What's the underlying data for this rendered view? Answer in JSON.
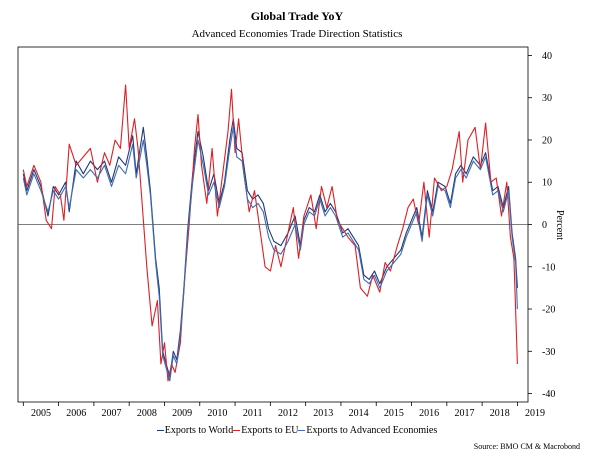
{
  "title": "Global Trade YoY",
  "subtitle": "Advanced Economies Trade Direction Statistics",
  "source": "Source: BMO CM & Macrobond",
  "colors": {
    "world": "#1f3a78",
    "eu": "#dd1f26",
    "advanced": "#3f6cb3"
  },
  "chart_data": {
    "type": "line",
    "title": "Global Trade YoY",
    "subtitle": "Advanced Economies Trade Direction Statistics",
    "ylabel": "Percent",
    "xlabel": "",
    "ylim": [
      -42,
      42
    ],
    "yticks": [
      -40,
      -30,
      -20,
      -10,
      0,
      10,
      20,
      30,
      40
    ],
    "xlim": [
      2004.85,
      2019.3
    ],
    "xticks": [
      "2005",
      "2006",
      "2007",
      "2008",
      "2009",
      "2010",
      "2011",
      "2012",
      "2013",
      "2014",
      "2015",
      "2016",
      "2017",
      "2018",
      "2019"
    ],
    "zero_line": true,
    "legend_position": "bottom",
    "series": [
      {
        "name": "Exports to World",
        "color": "#1f3a78",
        "points": [
          [
            2005.0,
            12
          ],
          [
            2005.1,
            8
          ],
          [
            2005.3,
            13
          ],
          [
            2005.5,
            9
          ],
          [
            2005.7,
            2
          ],
          [
            2005.85,
            9
          ],
          [
            2006.0,
            7
          ],
          [
            2006.2,
            10
          ],
          [
            2006.3,
            3
          ],
          [
            2006.5,
            15
          ],
          [
            2006.7,
            12
          ],
          [
            2006.9,
            15
          ],
          [
            2007.1,
            13
          ],
          [
            2007.3,
            15
          ],
          [
            2007.5,
            10
          ],
          [
            2007.7,
            16
          ],
          [
            2007.9,
            14
          ],
          [
            2008.1,
            21
          ],
          [
            2008.2,
            12
          ],
          [
            2008.4,
            23
          ],
          [
            2008.5,
            16
          ],
          [
            2008.6,
            8
          ],
          [
            2008.75,
            -8
          ],
          [
            2008.85,
            -15
          ],
          [
            2008.95,
            -30
          ],
          [
            2009.05,
            -33
          ],
          [
            2009.15,
            -36
          ],
          [
            2009.25,
            -30
          ],
          [
            2009.35,
            -32
          ],
          [
            2009.45,
            -25
          ],
          [
            2009.55,
            -15
          ],
          [
            2009.65,
            -2
          ],
          [
            2009.8,
            12
          ],
          [
            2009.95,
            22
          ],
          [
            2010.1,
            16
          ],
          [
            2010.25,
            8
          ],
          [
            2010.4,
            12
          ],
          [
            2010.55,
            5
          ],
          [
            2010.7,
            10
          ],
          [
            2010.85,
            20
          ],
          [
            2010.95,
            25
          ],
          [
            2011.05,
            18
          ],
          [
            2011.2,
            17
          ],
          [
            2011.35,
            8
          ],
          [
            2011.5,
            6
          ],
          [
            2011.65,
            7
          ],
          [
            2011.8,
            5
          ],
          [
            2011.95,
            -1
          ],
          [
            2012.1,
            -4
          ],
          [
            2012.3,
            -5
          ],
          [
            2012.5,
            -2
          ],
          [
            2012.7,
            2
          ],
          [
            2012.85,
            -5
          ],
          [
            2012.95,
            1
          ],
          [
            2013.1,
            4
          ],
          [
            2013.25,
            3
          ],
          [
            2013.4,
            7
          ],
          [
            2013.55,
            3
          ],
          [
            2013.7,
            5
          ],
          [
            2013.85,
            3
          ],
          [
            2014.05,
            -2
          ],
          [
            2014.2,
            -1
          ],
          [
            2014.35,
            -3
          ],
          [
            2014.5,
            -5
          ],
          [
            2014.65,
            -12
          ],
          [
            2014.8,
            -13
          ],
          [
            2014.95,
            -11
          ],
          [
            2015.1,
            -14
          ],
          [
            2015.3,
            -10
          ],
          [
            2015.5,
            -8
          ],
          [
            2015.7,
            -6
          ],
          [
            2015.85,
            -2
          ],
          [
            2016.0,
            1
          ],
          [
            2016.15,
            4
          ],
          [
            2016.3,
            -3
          ],
          [
            2016.45,
            8
          ],
          [
            2016.6,
            3
          ],
          [
            2016.75,
            10
          ],
          [
            2016.95,
            9
          ],
          [
            2017.1,
            5
          ],
          [
            2017.25,
            12
          ],
          [
            2017.4,
            14
          ],
          [
            2017.55,
            12
          ],
          [
            2017.75,
            16
          ],
          [
            2017.95,
            14
          ],
          [
            2018.1,
            17
          ],
          [
            2018.3,
            8
          ],
          [
            2018.45,
            9
          ],
          [
            2018.6,
            4
          ],
          [
            2018.75,
            9
          ],
          [
            2018.85,
            -2
          ],
          [
            2018.95,
            -8
          ],
          [
            2019.0,
            -15
          ]
        ]
      },
      {
        "name": "Exports to EU",
        "color": "#dd1f26",
        "points": [
          [
            2005.0,
            13
          ],
          [
            2005.1,
            9
          ],
          [
            2005.3,
            14
          ],
          [
            2005.5,
            10
          ],
          [
            2005.65,
            1
          ],
          [
            2005.8,
            -1
          ],
          [
            2005.9,
            9
          ],
          [
            2006.05,
            7
          ],
          [
            2006.15,
            1
          ],
          [
            2006.3,
            19
          ],
          [
            2006.5,
            14
          ],
          [
            2006.7,
            16
          ],
          [
            2006.9,
            18
          ],
          [
            2007.1,
            10
          ],
          [
            2007.3,
            17
          ],
          [
            2007.45,
            14
          ],
          [
            2007.6,
            20
          ],
          [
            2007.75,
            18
          ],
          [
            2007.9,
            33
          ],
          [
            2008.0,
            18
          ],
          [
            2008.15,
            25
          ],
          [
            2008.25,
            18
          ],
          [
            2008.35,
            7
          ],
          [
            2008.5,
            -10
          ],
          [
            2008.65,
            -24
          ],
          [
            2008.8,
            -18
          ],
          [
            2008.9,
            -33
          ],
          [
            2009.0,
            -28
          ],
          [
            2009.1,
            -37
          ],
          [
            2009.2,
            -33
          ],
          [
            2009.3,
            -35
          ],
          [
            2009.45,
            -28
          ],
          [
            2009.55,
            -15
          ],
          [
            2009.7,
            0
          ],
          [
            2009.85,
            18
          ],
          [
            2009.95,
            26
          ],
          [
            2010.05,
            14
          ],
          [
            2010.2,
            5
          ],
          [
            2010.35,
            18
          ],
          [
            2010.5,
            2
          ],
          [
            2010.65,
            12
          ],
          [
            2010.8,
            22
          ],
          [
            2010.9,
            32
          ],
          [
            2011.0,
            17
          ],
          [
            2011.1,
            25
          ],
          [
            2011.25,
            12
          ],
          [
            2011.4,
            3
          ],
          [
            2011.55,
            8
          ],
          [
            2011.7,
            -1
          ],
          [
            2011.85,
            -10
          ],
          [
            2012.0,
            -11
          ],
          [
            2012.15,
            -5
          ],
          [
            2012.3,
            -10
          ],
          [
            2012.45,
            -4
          ],
          [
            2012.65,
            4
          ],
          [
            2012.8,
            -8
          ],
          [
            2012.95,
            2
          ],
          [
            2013.15,
            7
          ],
          [
            2013.3,
            -1
          ],
          [
            2013.45,
            9
          ],
          [
            2013.6,
            4
          ],
          [
            2013.75,
            9
          ],
          [
            2013.9,
            1
          ],
          [
            2014.05,
            -1
          ],
          [
            2014.2,
            -3
          ],
          [
            2014.4,
            -5
          ],
          [
            2014.55,
            -15
          ],
          [
            2014.75,
            -17
          ],
          [
            2014.9,
            -12
          ],
          [
            2015.1,
            -16
          ],
          [
            2015.25,
            -9
          ],
          [
            2015.4,
            -11
          ],
          [
            2015.6,
            -5
          ],
          [
            2015.75,
            -1
          ],
          [
            2015.9,
            4
          ],
          [
            2016.05,
            6
          ],
          [
            2016.2,
            0
          ],
          [
            2016.35,
            10
          ],
          [
            2016.5,
            -3
          ],
          [
            2016.65,
            11
          ],
          [
            2016.85,
            8
          ],
          [
            2017.0,
            9
          ],
          [
            2017.15,
            13
          ],
          [
            2017.35,
            22
          ],
          [
            2017.45,
            10
          ],
          [
            2017.6,
            20
          ],
          [
            2017.8,
            23
          ],
          [
            2017.95,
            13
          ],
          [
            2018.1,
            24
          ],
          [
            2018.25,
            10
          ],
          [
            2018.4,
            11
          ],
          [
            2018.55,
            2
          ],
          [
            2018.7,
            10
          ],
          [
            2018.8,
            -3
          ],
          [
            2018.9,
            -8
          ],
          [
            2019.0,
            -33
          ]
        ]
      },
      {
        "name": "Exports to Advanced Economies",
        "color": "#3f6cb3",
        "points": [
          [
            2005.0,
            11
          ],
          [
            2005.1,
            7
          ],
          [
            2005.3,
            12
          ],
          [
            2005.5,
            8
          ],
          [
            2005.7,
            3
          ],
          [
            2005.85,
            8
          ],
          [
            2006.0,
            6
          ],
          [
            2006.2,
            9
          ],
          [
            2006.3,
            4
          ],
          [
            2006.5,
            13
          ],
          [
            2006.7,
            11
          ],
          [
            2006.9,
            13
          ],
          [
            2007.1,
            11
          ],
          [
            2007.3,
            14
          ],
          [
            2007.5,
            9
          ],
          [
            2007.7,
            14
          ],
          [
            2007.9,
            12
          ],
          [
            2008.1,
            19
          ],
          [
            2008.2,
            11
          ],
          [
            2008.4,
            20
          ],
          [
            2008.5,
            14
          ],
          [
            2008.6,
            7
          ],
          [
            2008.75,
            -9
          ],
          [
            2008.85,
            -17
          ],
          [
            2008.95,
            -31
          ],
          [
            2009.05,
            -34
          ],
          [
            2009.15,
            -37
          ],
          [
            2009.25,
            -31
          ],
          [
            2009.35,
            -33
          ],
          [
            2009.45,
            -26
          ],
          [
            2009.55,
            -16
          ],
          [
            2009.65,
            -3
          ],
          [
            2009.8,
            10
          ],
          [
            2009.95,
            20
          ],
          [
            2010.1,
            14
          ],
          [
            2010.25,
            7
          ],
          [
            2010.4,
            10
          ],
          [
            2010.55,
            4
          ],
          [
            2010.7,
            9
          ],
          [
            2010.85,
            18
          ],
          [
            2010.95,
            23
          ],
          [
            2011.05,
            16
          ],
          [
            2011.2,
            15
          ],
          [
            2011.35,
            6
          ],
          [
            2011.5,
            4
          ],
          [
            2011.65,
            5
          ],
          [
            2011.8,
            3
          ],
          [
            2011.95,
            -3
          ],
          [
            2012.1,
            -6
          ],
          [
            2012.3,
            -7
          ],
          [
            2012.5,
            -4
          ],
          [
            2012.7,
            0
          ],
          [
            2012.85,
            -6
          ],
          [
            2012.95,
            0
          ],
          [
            2013.1,
            3
          ],
          [
            2013.25,
            2
          ],
          [
            2013.4,
            6
          ],
          [
            2013.55,
            2
          ],
          [
            2013.7,
            4
          ],
          [
            2013.85,
            2
          ],
          [
            2014.05,
            -3
          ],
          [
            2014.2,
            -2
          ],
          [
            2014.35,
            -4
          ],
          [
            2014.5,
            -6
          ],
          [
            2014.65,
            -13
          ],
          [
            2014.8,
            -14
          ],
          [
            2014.95,
            -12
          ],
          [
            2015.1,
            -15
          ],
          [
            2015.3,
            -11
          ],
          [
            2015.5,
            -9
          ],
          [
            2015.7,
            -7
          ],
          [
            2015.85,
            -3
          ],
          [
            2016.0,
            0
          ],
          [
            2016.15,
            3
          ],
          [
            2016.3,
            -4
          ],
          [
            2016.45,
            7
          ],
          [
            2016.6,
            2
          ],
          [
            2016.75,
            9
          ],
          [
            2016.95,
            8
          ],
          [
            2017.1,
            4
          ],
          [
            2017.25,
            11
          ],
          [
            2017.4,
            13
          ],
          [
            2017.55,
            11
          ],
          [
            2017.75,
            15
          ],
          [
            2017.95,
            13
          ],
          [
            2018.1,
            16
          ],
          [
            2018.3,
            7
          ],
          [
            2018.45,
            8
          ],
          [
            2018.6,
            3
          ],
          [
            2018.75,
            8
          ],
          [
            2018.85,
            -3
          ],
          [
            2018.95,
            -9
          ],
          [
            2019.0,
            -20
          ]
        ]
      }
    ]
  }
}
